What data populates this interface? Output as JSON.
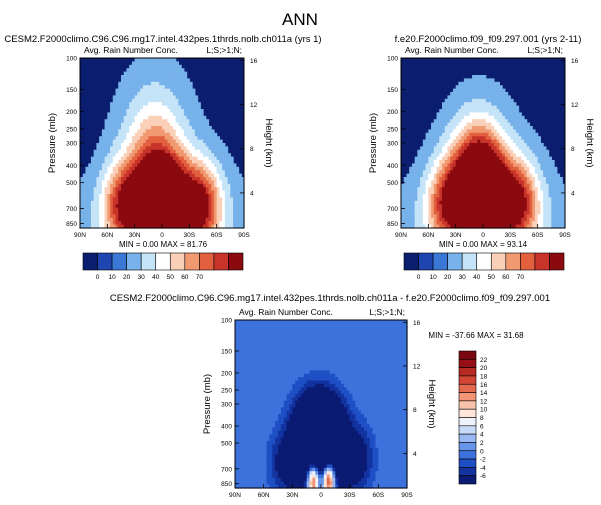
{
  "figure_title": "ANN",
  "chart_data": [
    {
      "id": "p1",
      "type": "heatmap",
      "title": "CESM2.F2000climo.C96.C96.mg17.intel.432pes.1thrds.nolb.ch011a (yrs 1)",
      "subtitle_left": "Avg. Rain Number Conc.",
      "subtitle_right": "L;S;>1;N;",
      "ylabel": "Pressure (mb)",
      "ylabel_right": "Height (km)",
      "x_ticks": [
        "90N",
        "60N",
        "30N",
        "0",
        "30S",
        "60S",
        "90S"
      ],
      "y_ticks": [
        "100",
        "150",
        "200",
        "250",
        "300",
        "400",
        "500",
        "700",
        "850"
      ],
      "y_ticks_right": [
        "16",
        "12",
        "8",
        "4"
      ],
      "stats": {
        "min_label": "MIN =",
        "min": "0.00",
        "max_label": "MAX =",
        "max": "81.76"
      },
      "levels": [
        0,
        10,
        20,
        30,
        40,
        50,
        60,
        70
      ],
      "max_value": 81.76,
      "blobs": [
        {
          "lat": 8,
          "p": 360,
          "amp": 45,
          "sx": 22,
          "sp": 0.55
        },
        {
          "lat": -10,
          "p": 640,
          "amp": 60,
          "sx": 22,
          "sp": 0.4
        },
        {
          "lat": 10,
          "p": 640,
          "amp": 55,
          "sx": 22,
          "sp": 0.4
        },
        {
          "lat": 45,
          "p": 650,
          "amp": 40,
          "sx": 14,
          "sp": 0.35
        },
        {
          "lat": -45,
          "p": 650,
          "amp": 48,
          "sx": 14,
          "sp": 0.35
        },
        {
          "lat": 0,
          "p": 850,
          "amp": 35,
          "sx": 45,
          "sp": 0.4
        }
      ]
    },
    {
      "id": "p2",
      "type": "heatmap",
      "title": "f.e20.F2000climo.f09_f09.297.001 (yrs 2-11)",
      "subtitle_left": "Avg. Rain Number Conc.",
      "subtitle_right": "L;S;>1;N;",
      "ylabel": "Pressure (mb)",
      "ylabel_right": "Height (km)",
      "x_ticks": [
        "90N",
        "60N",
        "30N",
        "0",
        "30S",
        "60S",
        "90S"
      ],
      "y_ticks": [
        "100",
        "150",
        "200",
        "250",
        "300",
        "400",
        "500",
        "700",
        "850"
      ],
      "y_ticks_right": [
        "16",
        "12",
        "8",
        "4"
      ],
      "stats": {
        "min_label": "MIN =",
        "min": "0.00",
        "max_label": "MAX =",
        "max": "93.14"
      },
      "levels": [
        0,
        10,
        20,
        30,
        40,
        50,
        60,
        70
      ],
      "max_value": 93.14,
      "blobs": [
        {
          "lat": 5,
          "p": 420,
          "amp": 70,
          "sx": 20,
          "sp": 0.45
        },
        {
          "lat": -10,
          "p": 600,
          "amp": 55,
          "sx": 22,
          "sp": 0.4
        },
        {
          "lat": 12,
          "p": 600,
          "amp": 50,
          "sx": 20,
          "sp": 0.4
        },
        {
          "lat": 42,
          "p": 640,
          "amp": 40,
          "sx": 14,
          "sp": 0.35
        },
        {
          "lat": -42,
          "p": 640,
          "amp": 45,
          "sx": 14,
          "sp": 0.35
        },
        {
          "lat": 0,
          "p": 850,
          "amp": 30,
          "sx": 45,
          "sp": 0.4
        }
      ]
    },
    {
      "id": "p3",
      "type": "heatmap",
      "title": "CESM2.F2000climo.C96.C96.mg17.intel.432pes.1thrds.nolb.ch011a - f.e20.F2000climo.f09_f09.297.001",
      "subtitle_left": "Avg. Rain Number Conc.",
      "subtitle_right": "L;S;>1;N;",
      "ylabel": "Pressure (mb)",
      "ylabel_right": "Height (km)",
      "x_ticks": [
        "90N",
        "60N",
        "30N",
        "0",
        "30S",
        "60S",
        "90S"
      ],
      "y_ticks": [
        "100",
        "150",
        "200",
        "250",
        "300",
        "400",
        "500",
        "700",
        "850"
      ],
      "y_ticks_right": [
        "16",
        "12",
        "8",
        "4"
      ],
      "stats": {
        "min_label": "MIN =",
        "min": "-37.66",
        "max_label": "MAX =",
        "max": "31.68"
      },
      "levels": [
        -6,
        -4,
        -2,
        0,
        2,
        4,
        6,
        8,
        10,
        12,
        14,
        16,
        18,
        20,
        22
      ],
      "blobs": [
        {
          "lat": 2,
          "p": 420,
          "amp": -24,
          "sx": 18,
          "sp": 0.35
        },
        {
          "lat": -8,
          "p": 800,
          "amp": 30,
          "sx": 5,
          "sp": 0.18
        },
        {
          "lat": 8,
          "p": 800,
          "amp": 28,
          "sx": 5,
          "sp": 0.18
        },
        {
          "lat": 0,
          "p": 700,
          "amp": -14,
          "sx": 22,
          "sp": 0.3
        },
        {
          "lat": 40,
          "p": 650,
          "amp": -5,
          "sx": 12,
          "sp": 0.3
        },
        {
          "lat": -40,
          "p": 600,
          "amp": -6,
          "sx": 12,
          "sp": 0.3
        }
      ]
    }
  ]
}
